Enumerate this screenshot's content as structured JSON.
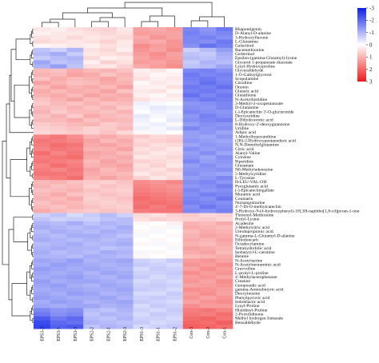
{
  "chart_data": {
    "type": "heatmap",
    "title": "",
    "xlabel": "",
    "ylabel": "",
    "columns": [
      "EPS3-2",
      "EPS3-1",
      "EPS3-3",
      "EPS2-2",
      "EPS2-1",
      "EPS2-3",
      "EPS1-3",
      "EPS1-1",
      "EPS1-2",
      "Con-3",
      "Con-2",
      "Con-1"
    ],
    "rows": [
      "Rhapontigenin",
      "D-Alanyl-D-alanine",
      "3-Hydroxyflavone",
      "L-Glutamine",
      "Galactinol",
      "Racemethionine",
      "Gerberinol",
      "Epsilon-(gamma-Glutamyl)-lysine",
      "Glycerol 1-propanoate diacetate",
      "Lysyl-Hydroxyproline",
      "Glyceraldehyde",
      "1-O-Galloylglycerol",
      "Scopolamine",
      "Citrulline",
      "Ononin",
      "Glutaric acid",
      "Glutathione",
      "N-Acetylhistidine",
      "3-Methyl-2-oxopentanoate",
      "D-Glutamine",
      "(-)-Epicatechin 3'-O-glucuronide",
      "Deoxyuridine",
      "L-Dihydroorotic acid",
      "8-Hydroxy-2'-deoxyguanosine",
      "Uridine",
      "Adipic acid",
      "1-Methylhypoxanthine",
      "(2R)-2-Hydroxypentanedioic acid",
      "N,N-Dimethylglutamine",
      "Citric acid",
      "Alanyl-Valine",
      "Cytosine",
      "Piperidine",
      "Glutamate",
      "N6-Methyladenosine",
      "5-Methylcytidine",
      "L-Tyrosine",
      "H-LEU-VAL-OH",
      "Pyroglutamic acid",
      "(-)-Epicatechingallate",
      "Muramic acid",
      "Coumarin",
      "Norsanguinarine",
      "4'-7-Di-O-methylcatechin",
      "3-Hydroxy-9-(4-hydroxyphenyl)-1H,3H-naphtho[1,8-cd]pyran-1-one",
      "Threonyl-Methionine",
      "Prolyl-Lysine",
      "Acadesine",
      "2-Methylcitric acid",
      "Ureidopropionic acid",
      "N-gamma-L-Glutamyl-D-alanine",
      "Ethiofencarb",
      "Octadecylamine",
      "Tetrahydrofolic acid",
      "Isobutyryl-L-carnitine",
      "Betaine",
      "N-Acetylserine",
      "N-Acetylneuraminic acid",
      "Gravvoline",
      "L-prolyl-L-proline",
      "4'-Methylacetophenone",
      "Creatine",
      "Geniposidic acid",
      "gamma-Aminobutyric acid",
      "Deoxyinosine",
      "Phenylpyruvic acid",
      "Indolelactic acid",
      "Lysyl-Proline",
      "Histidinyl-Proline",
      "2-Pyrrolidinone",
      "Methyl hydrogen fumarate",
      "Benzaldehyde"
    ],
    "values": [
      [
        0.3,
        0.2,
        0.4,
        0.5,
        0.6,
        0.3,
        1.2,
        1.1,
        1.3,
        -1.6,
        -1.4,
        -1.8
      ],
      [
        0.2,
        0.3,
        0.3,
        0.4,
        0.5,
        0.4,
        1.3,
        1.2,
        1.2,
        -1.7,
        -1.5,
        -1.6
      ],
      [
        0.4,
        0.3,
        0.5,
        0.3,
        0.4,
        0.5,
        1.1,
        1.4,
        1.2,
        -1.6,
        -1.7,
        -1.5
      ],
      [
        0.5,
        0.4,
        0.3,
        0.4,
        0.6,
        0.3,
        1.2,
        1.1,
        1.4,
        -1.6,
        -1.5,
        -1.8
      ],
      [
        0.1,
        0.2,
        0.3,
        0.2,
        0.4,
        0.3,
        1.5,
        1.3,
        1.4,
        -1.5,
        -1.9,
        -1.7
      ],
      [
        -0.8,
        -0.6,
        -1.0,
        0.4,
        0.5,
        0.2,
        1.4,
        1.2,
        1.5,
        -0.6,
        -0.9,
        -1.3
      ],
      [
        -0.9,
        -1.1,
        -0.7,
        0.3,
        0.4,
        0.5,
        1.3,
        1.5,
        1.2,
        -0.8,
        -0.7,
        -1.1
      ],
      [
        -0.7,
        -0.9,
        -1.0,
        0.5,
        0.2,
        0.3,
        1.2,
        1.4,
        1.3,
        -0.9,
        -0.8,
        -1.0
      ],
      [
        -1.2,
        -0.8,
        -0.9,
        0.2,
        0.6,
        0.4,
        1.3,
        1.2,
        1.4,
        -0.7,
        -1.0,
        -0.9
      ],
      [
        -1.0,
        -1.3,
        -0.8,
        0.4,
        0.3,
        0.6,
        1.1,
        1.3,
        1.5,
        -0.8,
        -0.9,
        -1.2
      ],
      [
        0.9,
        0.8,
        1.1,
        0.9,
        1.0,
        0.8,
        0.2,
        0.3,
        0.1,
        -1.6,
        -1.7,
        -1.5
      ],
      [
        1.0,
        0.9,
        1.2,
        1.1,
        0.8,
        1.0,
        0.3,
        0.1,
        0.2,
        -1.8,
        -1.6,
        -1.7
      ],
      [
        0.8,
        1.1,
        0.9,
        1.0,
        1.2,
        0.9,
        0.4,
        0.2,
        0.3,
        -1.7,
        -1.8,
        -1.6
      ],
      [
        1.2,
        1.0,
        0.8,
        0.9,
        1.1,
        1.0,
        0.1,
        0.3,
        0.2,
        -1.6,
        -1.9,
        -1.7
      ],
      [
        0.9,
        1.2,
        1.0,
        1.1,
        0.9,
        1.2,
        0.2,
        0.2,
        0.4,
        -1.8,
        -1.7,
        -1.9
      ],
      [
        1.1,
        0.9,
        1.1,
        1.0,
        1.2,
        0.8,
        0.3,
        0.4,
        0.1,
        -1.7,
        -1.8,
        -1.6
      ],
      [
        1.0,
        1.1,
        0.9,
        1.2,
        1.0,
        1.1,
        0.2,
        0.1,
        0.3,
        -1.9,
        -1.6,
        -1.8
      ],
      [
        0.8,
        1.0,
        1.2,
        0.9,
        1.1,
        1.0,
        0.4,
        0.2,
        0.2,
        -1.6,
        -1.8,
        -1.7
      ],
      [
        0.7,
        0.9,
        0.8,
        1.0,
        0.8,
        0.9,
        -0.2,
        -0.1,
        0.0,
        -1.4,
        -1.5,
        -1.6
      ],
      [
        0.9,
        0.8,
        1.0,
        0.8,
        1.0,
        0.7,
        -0.1,
        -0.3,
        -0.2,
        -1.5,
        -1.4,
        -1.6
      ],
      [
        1.0,
        0.7,
        0.9,
        0.9,
        0.8,
        1.0,
        0.0,
        -0.2,
        -0.1,
        -1.6,
        -1.5,
        -1.4
      ],
      [
        0.8,
        1.0,
        0.7,
        1.1,
        0.9,
        0.8,
        -0.3,
        -0.1,
        -0.2,
        -1.4,
        -1.7,
        -1.5
      ],
      [
        0.9,
        0.9,
        1.1,
        0.8,
        1.0,
        0.9,
        -0.2,
        0.0,
        -0.3,
        -1.5,
        -1.6,
        -1.7
      ],
      [
        0.7,
        0.8,
        0.9,
        1.0,
        0.7,
        0.8,
        -0.1,
        -0.2,
        0.1,
        -1.3,
        -1.5,
        -1.4
      ],
      [
        0.6,
        0.7,
        0.8,
        0.6,
        0.7,
        0.9,
        -0.2,
        -0.1,
        -0.3,
        -1.6,
        -1.4,
        -1.5
      ],
      [
        0.5,
        0.6,
        0.7,
        0.6,
        0.8,
        0.5,
        0.1,
        -0.1,
        0.0,
        -1.3,
        -1.4,
        -1.2
      ],
      [
        1.6,
        1.8,
        1.5,
        1.0,
        1.1,
        0.9,
        0.7,
        0.5,
        0.6,
        -1.3,
        -1.2,
        -1.4
      ],
      [
        1.8,
        1.7,
        1.6,
        1.2,
        0.9,
        1.1,
        0.5,
        0.6,
        0.7,
        -1.4,
        -1.3,
        -1.2
      ],
      [
        1.7,
        1.9,
        1.8,
        1.1,
        1.2,
        1.0,
        0.6,
        0.4,
        0.5,
        -1.2,
        -1.4,
        -1.3
      ],
      [
        1.6,
        1.8,
        1.7,
        1.0,
        1.0,
        1.2,
        0.4,
        0.5,
        0.3,
        -1.5,
        -1.3,
        -1.4
      ],
      [
        1.9,
        1.6,
        1.8,
        1.2,
        1.1,
        0.9,
        0.5,
        0.3,
        0.4,
        -1.3,
        -1.5,
        -1.2
      ],
      [
        1.7,
        1.8,
        1.9,
        1.1,
        1.0,
        1.1,
        0.3,
        0.4,
        0.5,
        -1.4,
        -1.2,
        -1.5
      ],
      [
        1.8,
        1.7,
        1.6,
        0.9,
        1.2,
        1.0,
        0.6,
        0.5,
        0.4,
        -1.6,
        -1.3,
        -1.4
      ],
      [
        1.6,
        1.9,
        1.7,
        1.0,
        1.1,
        1.2,
        0.4,
        0.6,
        0.3,
        -1.3,
        -1.5,
        -1.3
      ],
      [
        1.7,
        1.6,
        1.8,
        1.2,
        0.9,
        1.1,
        0.5,
        0.4,
        0.6,
        -1.4,
        -1.4,
        -1.5
      ],
      [
        1.8,
        1.8,
        1.7,
        1.1,
        1.0,
        0.9,
        0.3,
        0.5,
        0.4,
        -1.5,
        -1.3,
        -1.2
      ],
      [
        1.6,
        1.7,
        1.9,
        1.0,
        1.2,
        1.0,
        0.6,
        0.3,
        0.5,
        -1.3,
        -1.4,
        -1.6
      ],
      [
        0.9,
        1.0,
        0.8,
        0.7,
        0.6,
        0.8,
        1.5,
        1.4,
        1.6,
        -1.5,
        -1.6,
        -1.4
      ],
      [
        1.0,
        0.8,
        0.9,
        0.6,
        0.8,
        0.7,
        1.6,
        1.5,
        1.4,
        -1.4,
        -1.5,
        -1.7
      ],
      [
        0.8,
        0.9,
        1.0,
        0.8,
        0.7,
        0.6,
        1.7,
        1.6,
        1.5,
        -1.6,
        -1.4,
        -1.5
      ],
      [
        0.9,
        1.1,
        0.8,
        0.7,
        0.8,
        0.7,
        1.8,
        1.7,
        1.6,
        -1.5,
        -1.7,
        -1.6
      ],
      [
        1.0,
        0.9,
        1.1,
        0.6,
        0.7,
        0.8,
        1.9,
        1.8,
        1.7,
        -1.6,
        -1.5,
        -1.8
      ],
      [
        0.8,
        1.0,
        0.9,
        0.7,
        0.6,
        0.7,
        1.8,
        1.9,
        1.8,
        -1.7,
        -1.6,
        -1.5
      ],
      [
        0.9,
        0.8,
        1.0,
        0.8,
        0.7,
        0.6,
        1.9,
        1.7,
        1.9,
        -1.5,
        -1.8,
        -1.6
      ],
      [
        1.1,
        0.9,
        0.8,
        0.7,
        0.8,
        0.7,
        1.7,
        1.8,
        1.8,
        -1.6,
        -1.5,
        -1.7
      ],
      [
        -0.6,
        -0.8,
        -0.5,
        -0.7,
        -0.9,
        -0.6,
        0.5,
        0.4,
        0.6,
        0.7,
        0.5,
        0.6
      ],
      [
        -0.8,
        -0.6,
        -0.7,
        -0.6,
        -0.8,
        -0.9,
        0.4,
        0.6,
        0.5,
        0.6,
        0.7,
        0.5
      ],
      [
        -1.0,
        -0.9,
        -1.1,
        -0.8,
        -1.0,
        -0.9,
        0.1,
        0.0,
        0.2,
        1.0,
        0.9,
        1.1
      ],
      [
        -1.1,
        -1.0,
        -0.9,
        -1.0,
        -0.9,
        -1.1,
        0.0,
        0.1,
        -0.1,
        1.1,
        1.0,
        0.9
      ],
      [
        -0.9,
        -1.1,
        -1.0,
        -0.9,
        -1.1,
        -1.0,
        0.1,
        -0.1,
        0.0,
        0.9,
        1.1,
        1.0
      ],
      [
        -1.0,
        -0.9,
        -1.1,
        -1.1,
        -1.0,
        -0.8,
        -0.1,
        0.0,
        0.1,
        1.0,
        1.2,
        1.1
      ],
      [
        -1.1,
        -1.0,
        -0.9,
        -1.0,
        -0.9,
        -1.0,
        0.0,
        0.1,
        0.0,
        1.1,
        1.0,
        1.2
      ],
      [
        -0.9,
        -1.0,
        -1.1,
        -0.9,
        -1.0,
        -1.1,
        0.1,
        -0.1,
        0.1,
        1.0,
        0.9,
        1.1
      ],
      [
        -1.0,
        -1.1,
        -1.0,
        -1.0,
        -0.8,
        -0.9,
        0.0,
        0.0,
        -0.1,
        1.2,
        1.1,
        1.0
      ],
      [
        -1.1,
        -0.9,
        -1.0,
        -0.9,
        -1.1,
        -1.0,
        -0.1,
        0.1,
        0.0,
        1.1,
        1.2,
        0.9
      ],
      [
        -1.0,
        -1.0,
        -0.9,
        -1.1,
        -1.0,
        -0.9,
        0.1,
        0.0,
        0.1,
        0.9,
        1.0,
        1.1
      ],
      [
        -1.2,
        -1.1,
        -1.3,
        -1.0,
        -1.1,
        -1.2,
        -0.6,
        -0.5,
        -0.7,
        1.3,
        1.4,
        1.2
      ],
      [
        -1.1,
        -1.3,
        -1.2,
        -1.1,
        -1.0,
        -1.1,
        -0.7,
        -0.6,
        -0.5,
        1.4,
        1.3,
        1.5
      ],
      [
        -1.3,
        -1.2,
        -1.1,
        -1.2,
        -1.1,
        -1.0,
        -0.5,
        -0.7,
        -0.6,
        1.2,
        1.5,
        1.3
      ],
      [
        -1.2,
        -1.1,
        -1.2,
        -1.0,
        -1.2,
        -1.1,
        -0.6,
        -0.6,
        -0.7,
        1.5,
        1.3,
        1.4
      ],
      [
        -1.1,
        -1.2,
        -1.3,
        -1.1,
        -1.0,
        -1.2,
        -0.7,
        -0.5,
        -0.6,
        1.3,
        1.4,
        1.2
      ],
      [
        -1.3,
        -1.1,
        -1.2,
        -1.2,
        -1.1,
        -1.0,
        -0.5,
        -0.6,
        -0.5,
        1.4,
        1.2,
        1.5
      ],
      [
        -1.2,
        -1.3,
        -1.1,
        -1.0,
        -1.2,
        -1.1,
        -0.6,
        -0.7,
        -0.6,
        1.2,
        1.3,
        1.4
      ],
      [
        -1.1,
        -1.2,
        -1.2,
        -1.1,
        -1.1,
        -1.2,
        -0.7,
        -0.6,
        -0.5,
        1.5,
        1.4,
        1.3
      ],
      [
        -1.2,
        -1.1,
        -1.3,
        -1.2,
        -1.0,
        -1.1,
        -0.5,
        -0.5,
        -0.7,
        1.3,
        1.5,
        1.2
      ],
      [
        -1.3,
        -1.2,
        -1.1,
        -1.1,
        -1.2,
        -1.0,
        -0.6,
        -0.7,
        -0.6,
        1.4,
        1.2,
        1.4
      ],
      [
        -1.1,
        -1.3,
        -1.2,
        -1.0,
        -1.1,
        -1.2,
        -0.7,
        -0.6,
        -0.5,
        1.2,
        1.4,
        1.5
      ],
      [
        -1.2,
        -1.1,
        -1.2,
        -1.2,
        -1.0,
        -1.1,
        -0.5,
        -0.7,
        -0.6,
        1.5,
        1.3,
        1.3
      ],
      [
        -1.6,
        -1.4,
        -1.5,
        -0.9,
        -0.8,
        -1.0,
        -0.6,
        -0.5,
        -0.7,
        1.7,
        1.8,
        1.6
      ],
      [
        -1.8,
        -1.5,
        -1.6,
        -0.8,
        -1.0,
        -0.9,
        -0.5,
        -0.7,
        -0.6,
        1.8,
        1.7,
        1.9
      ],
      [
        -2.2,
        -1.8,
        -2.0,
        -0.9,
        -0.8,
        -1.0,
        -0.6,
        -0.6,
        -0.5,
        1.9,
        2.0,
        1.8
      ],
      [
        -2.4,
        -2.0,
        -1.9,
        -1.0,
        -0.9,
        -0.8,
        -0.7,
        -0.5,
        -0.6,
        2.0,
        1.9,
        2.1
      ],
      [
        -2.5,
        -2.1,
        -2.2,
        -0.8,
        -1.0,
        -0.9,
        -0.5,
        -0.6,
        -0.7,
        2.1,
        2.0,
        1.9
      ]
    ],
    "color_scale": {
      "min": -3,
      "max": 3,
      "ticks": [
        "-3",
        "-2",
        "-1",
        "0",
        "1",
        "2",
        "3"
      ],
      "low_color": "#0b1ee8",
      "mid_color": "#ffffff",
      "high_color": "#ee1a1a",
      "direction": "top-blue-bottom-red"
    },
    "legend_position": "top-right",
    "row_dendrogram": "left",
    "col_dendrogram": "top",
    "grid": false
  }
}
